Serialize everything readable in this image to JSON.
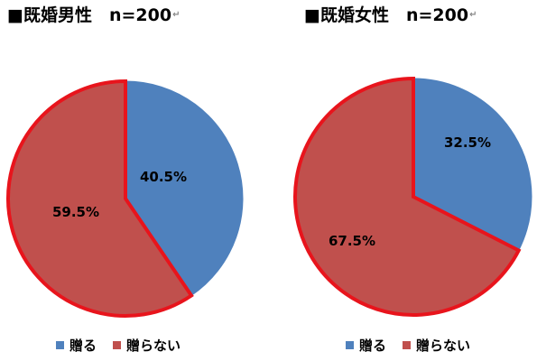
{
  "chart_data": [
    {
      "type": "pie",
      "title": "■既婚男性　n=200",
      "categories": [
        "贈る",
        "贈らない"
      ],
      "values": [
        40.5,
        59.5
      ],
      "labels": [
        "40.5%",
        "59.5%"
      ],
      "colors": [
        "#4F81BD",
        "#C0504D"
      ],
      "legend": "bottom"
    },
    {
      "type": "pie",
      "title": "■既婚女性　n=200",
      "categories": [
        "贈る",
        "贈らない"
      ],
      "values": [
        32.5,
        67.5
      ],
      "labels": [
        "32.5%",
        "67.5%"
      ],
      "colors": [
        "#4F81BD",
        "#C0504D"
      ],
      "legend": "bottom"
    }
  ],
  "title_mark": "↵",
  "outline_color": "#E8141C"
}
